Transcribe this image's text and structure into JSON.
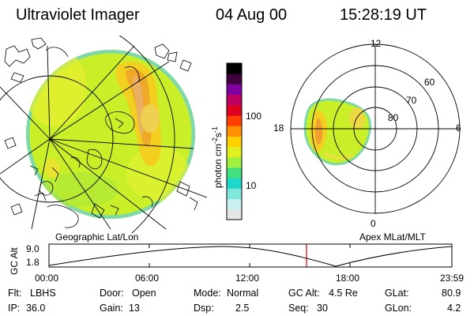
{
  "header": {
    "title": "Ultraviolet Imager",
    "date": "04 Aug 00",
    "time": "15:28:19 UT"
  },
  "left_map": {
    "label": "Geographic Lat/Lon"
  },
  "colorbar": {
    "unit_label": "photon cm",
    "exp1": "-2",
    "unit_mid": "s",
    "exp2": "-1",
    "ticks": [
      "100",
      "10"
    ],
    "colors": [
      "#e6e6e6",
      "#c8f0f0",
      "#80e8d8",
      "#20d8c8",
      "#40e080",
      "#a0f040",
      "#e0f020",
      "#ffd000",
      "#ff9000",
      "#ff4000",
      "#e00020",
      "#c00060",
      "#8000a0",
      "#400040",
      "#000000"
    ]
  },
  "polar_plot": {
    "label": "Apex MLat/MLT",
    "mlt_labels": [
      "12",
      "18",
      "6",
      "0"
    ],
    "lat_labels": [
      "60",
      "70",
      "80"
    ]
  },
  "altitude_plot": {
    "y_label": "GC Alt",
    "y_ticks": [
      "9.0",
      "1.8"
    ],
    "x_ticks": [
      "00:00",
      "06:00",
      "12:00",
      "18:00",
      "23:59"
    ],
    "marker_color": "#d00000"
  },
  "info": {
    "flt_label": "Flt:",
    "flt_value": "LBHS",
    "ip_label": "IP:",
    "ip_value": "36.0",
    "door_label": "Door:",
    "door_value": "Open",
    "gain_label": "Gain:",
    "gain_value": "13",
    "mode_label": "Mode:",
    "mode_value": "Normal",
    "dsp_label": "Dsp:",
    "dsp_value": "2.5",
    "gcalt_label": "GC Alt:",
    "gcalt_value": "4.5 Re",
    "seq_label": "Seq:",
    "seq_value": "30",
    "glat_label": "GLat:",
    "glat_value": "80.9",
    "glon_label": "GLon:",
    "glon_value": "4.2"
  }
}
